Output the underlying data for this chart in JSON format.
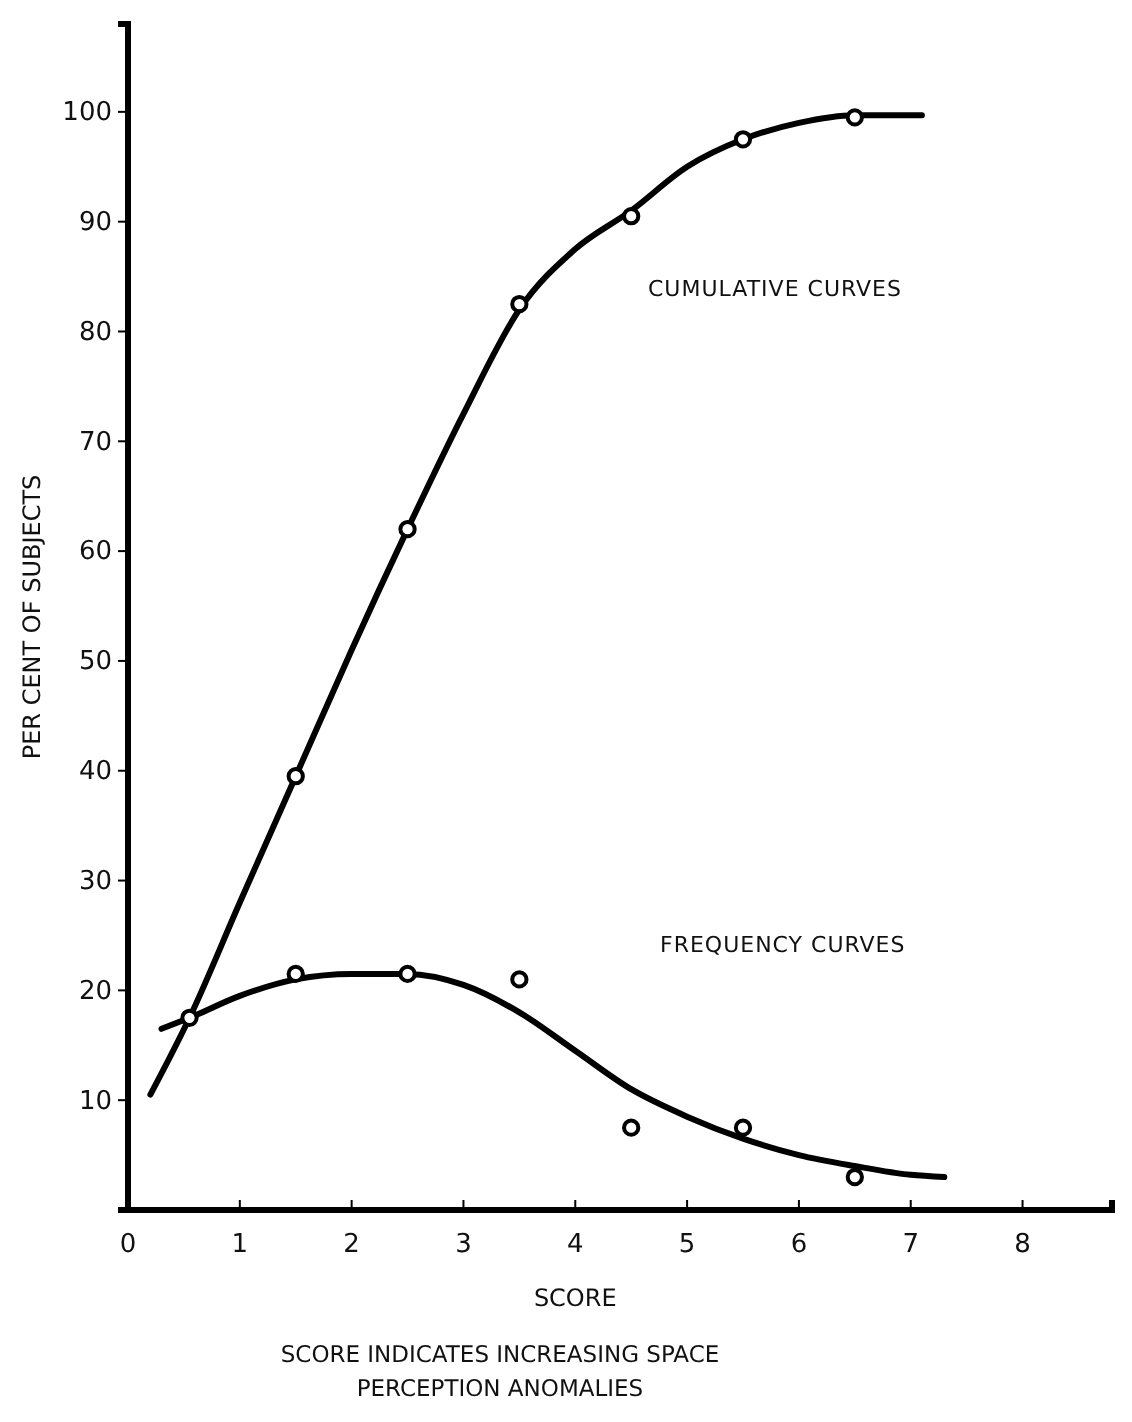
{
  "chart_data": {
    "type": "line",
    "xlabel": "SCORE",
    "ylabel": "PER CENT OF SUBJECTS",
    "xlim": [
      0,
      8.8
    ],
    "ylim": [
      0,
      108
    ],
    "xticks": [
      0,
      1,
      2,
      3,
      4,
      5,
      6,
      7,
      8
    ],
    "yticks": [
      10,
      20,
      30,
      40,
      50,
      60,
      70,
      80,
      90,
      100
    ],
    "grid": false,
    "line_style": "solid",
    "series": [
      {
        "marker": "none",
        "color": "#000000",
        "x": [
          0.2,
          0.55,
          1,
          1.5,
          2,
          2.5,
          3,
          3.5,
          4,
          4.5,
          5,
          5.5,
          6,
          6.5,
          7.1
        ],
        "values": [
          10.5,
          17.5,
          28,
          39.5,
          51,
          62,
          72.5,
          82,
          87.5,
          91,
          95,
          97.5,
          99,
          99.7,
          99.7
        ]
      },
      {
        "marker": "none",
        "color": "#000000",
        "x": [
          0.3,
          0.55,
          1,
          1.5,
          2,
          2.5,
          3,
          3.5,
          4,
          4.5,
          5,
          5.5,
          6,
          6.5,
          7,
          7.3
        ],
        "values": [
          16.5,
          17.5,
          19.5,
          21,
          21.5,
          21.5,
          20.5,
          18,
          14.5,
          11,
          8.5,
          6.5,
          5,
          4,
          3.2,
          3
        ]
      },
      {
        "type": "scatter",
        "marker": "circle",
        "color": "#000000",
        "x": [
          0.55,
          1.5,
          2.5,
          3.5,
          4.5,
          5.5,
          6.5
        ],
        "values": [
          17.5,
          39.5,
          62,
          82.5,
          90.5,
          97.5,
          99.5
        ]
      },
      {
        "type": "scatter",
        "marker": "circle",
        "color": "#000000",
        "x": [
          1.5,
          2.5,
          3.5,
          4.5,
          5.5,
          6.5
        ],
        "values": [
          21.5,
          21.5,
          21,
          7.5,
          7.5,
          3
        ]
      }
    ],
    "annotations": [
      "CUMULATIVE CURVES",
      "FREQUENCY CURVES",
      "SCORE INDICATES INCREASING SPACE PERCEPTION ANOMALIES"
    ]
  }
}
